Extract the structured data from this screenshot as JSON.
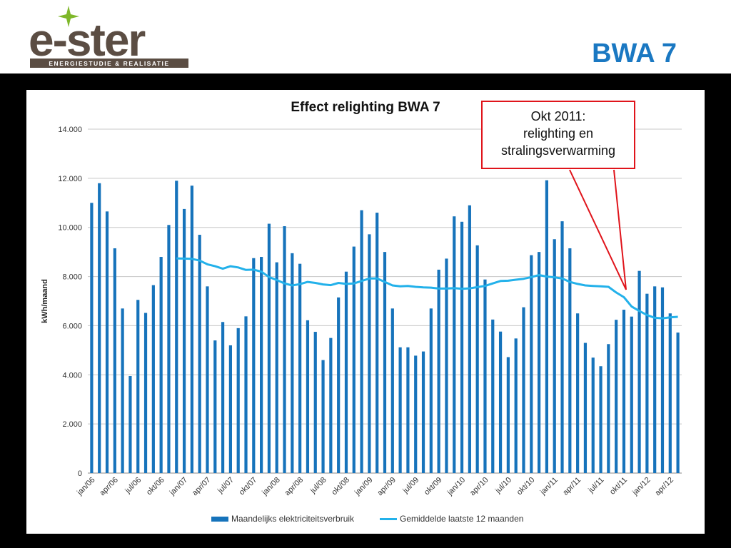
{
  "header": {
    "logo_text": "e-ster",
    "logo_subtitle": "ENERGIESTUDIE & REALISATIE",
    "slide_title": "BWA 7"
  },
  "callout": {
    "line1": "Okt 2011:",
    "line2": "relighting en",
    "line3": "stralingsverwarming"
  },
  "colors": {
    "bar": "#1673bb",
    "line": "#23b1ea",
    "title_blue": "#1a78c2",
    "callout_red": "#e0141b",
    "logo_dark": "#5b4d43",
    "logo_green": "#7fb82a"
  },
  "chart_data": {
    "type": "bar",
    "title": "Effect relighting BWA 7",
    "xlabel": "",
    "ylabel": "kWh/maand",
    "ylim": [
      0,
      14000
    ],
    "yticks": [
      0,
      2000,
      4000,
      6000,
      8000,
      10000,
      12000,
      14000
    ],
    "ytick_labels": [
      "0",
      "2.000",
      "4.000",
      "6.000",
      "8.000",
      "10.000",
      "12.000",
      "14.000"
    ],
    "grid": true,
    "legend_position": "bottom",
    "categories": [
      "jan/06",
      "feb/06",
      "mrt/06",
      "apr/06",
      "mei/06",
      "jun/06",
      "jul/06",
      "aug/06",
      "sep/06",
      "okt/06",
      "nov/06",
      "dec/06",
      "jan/07",
      "feb/07",
      "mrt/07",
      "apr/07",
      "mei/07",
      "jun/07",
      "jul/07",
      "aug/07",
      "sep/07",
      "okt/07",
      "nov/07",
      "dec/07",
      "jan/08",
      "feb/08",
      "mrt/08",
      "apr/08",
      "mei/08",
      "jun/08",
      "jul/08",
      "aug/08",
      "sep/08",
      "okt/08",
      "nov/08",
      "dec/08",
      "jan/09",
      "feb/09",
      "mrt/09",
      "apr/09",
      "mei/09",
      "jun/09",
      "jul/09",
      "aug/09",
      "sep/09",
      "okt/09",
      "nov/09",
      "dec/09",
      "jan/10",
      "feb/10",
      "mrt/10",
      "apr/10",
      "mei/10",
      "jun/10",
      "jul/10",
      "aug/10",
      "sep/10",
      "okt/10",
      "nov/10",
      "dec/10",
      "jan/11",
      "feb/11",
      "mrt/11",
      "apr/11",
      "mei/11",
      "jun/11",
      "jul/11",
      "aug/11",
      "sep/11",
      "okt/11",
      "nov/11",
      "dec/11",
      "jan/12",
      "feb/12",
      "mrt/12",
      "apr/12",
      "mei/12"
    ],
    "xtick_labels": [
      "jan/06",
      "apr/06",
      "jul/06",
      "okt/06",
      "jan/07",
      "apr/07",
      "jul/07",
      "okt/07",
      "jan/08",
      "apr/08",
      "jul/08",
      "okt/08",
      "jan/09",
      "apr/09",
      "jul/09",
      "okt/09",
      "jan/10",
      "apr/10",
      "jul/10",
      "okt/10",
      "jan/11",
      "apr/11",
      "jul/11",
      "okt/11",
      "jan/12",
      "apr/12"
    ],
    "series": [
      {
        "name": "Maandelijks elektriciteitsverbruik",
        "type": "bar",
        "values": [
          11000,
          11800,
          10650,
          9150,
          6700,
          3950,
          7050,
          6520,
          7650,
          8800,
          10100,
          11900,
          10750,
          11700,
          9700,
          7600,
          5400,
          6150,
          5200,
          5900,
          6380,
          8750,
          8800,
          10150,
          8580,
          10050,
          8950,
          8520,
          6220,
          5750,
          4600,
          5500,
          7150,
          8200,
          9220,
          10700,
          9720,
          10600,
          9000,
          6700,
          5120,
          5120,
          4780,
          4950,
          6700,
          8280,
          8730,
          10450,
          10230,
          10900,
          9270,
          7880,
          6250,
          5760,
          4720,
          5480,
          6750,
          8870,
          9000,
          11920,
          9520,
          10250,
          9150,
          6500,
          5300,
          4700,
          4350,
          5250,
          6240,
          6650,
          6370,
          8230,
          7300,
          7600,
          7560,
          6500,
          5720
        ]
      },
      {
        "name": "Gemiddelde laatste 12 maanden",
        "type": "line",
        "values": [
          null,
          null,
          null,
          null,
          null,
          null,
          null,
          null,
          null,
          null,
          null,
          8740,
          8730,
          8720,
          8650,
          8500,
          8420,
          8320,
          8420,
          8370,
          8270,
          8280,
          8200,
          7980,
          7860,
          7720,
          7640,
          7690,
          7780,
          7740,
          7680,
          7650,
          7740,
          7700,
          7720,
          7820,
          7920,
          7920,
          7780,
          7640,
          7600,
          7620,
          7580,
          7560,
          7550,
          7510,
          7510,
          7530,
          7500,
          7520,
          7570,
          7620,
          7720,
          7820,
          7830,
          7870,
          7910,
          7980,
          8060,
          8000,
          7970,
          7920,
          7780,
          7700,
          7640,
          7620,
          7600,
          7580,
          7350,
          7160,
          6780,
          6600,
          6430,
          6320,
          6300,
          6340,
          6360
        ]
      }
    ]
  }
}
